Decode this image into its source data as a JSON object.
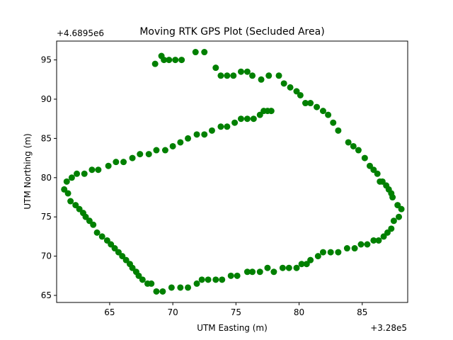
{
  "chart_data": {
    "type": "scatter",
    "title": "Moving RTK GPS Plot (Secluded Area)",
    "xlabel": "UTM Easting (m)",
    "ylabel": "UTM Northing (m)",
    "x_offset_label": "+3.28e5",
    "y_offset_label": "+4.6895e6",
    "xlim": [
      60.8,
      88.6
    ],
    "ylim": [
      64.1,
      97.4
    ],
    "xticks": [
      65,
      70,
      75,
      80,
      85
    ],
    "yticks": [
      65,
      70,
      75,
      80,
      85,
      90,
      95
    ],
    "grid": false,
    "marker_color": "#008000",
    "points": [
      [
        68.6,
        94.5
      ],
      [
        69.1,
        95.5
      ],
      [
        69.3,
        95.0
      ],
      [
        69.7,
        95.0
      ],
      [
        70.2,
        95.0
      ],
      [
        70.7,
        95.0
      ],
      [
        71.8,
        96.0
      ],
      [
        72.5,
        96.0
      ],
      [
        73.4,
        94.0
      ],
      [
        73.8,
        93.0
      ],
      [
        74.3,
        93.0
      ],
      [
        74.8,
        93.0
      ],
      [
        75.4,
        93.5
      ],
      [
        75.9,
        93.5
      ],
      [
        76.3,
        93.0
      ],
      [
        77.0,
        92.5
      ],
      [
        77.6,
        93.0
      ],
      [
        78.4,
        93.0
      ],
      [
        78.8,
        92.0
      ],
      [
        79.3,
        91.5
      ],
      [
        79.8,
        91.0
      ],
      [
        80.1,
        90.5
      ],
      [
        80.5,
        89.5
      ],
      [
        80.9,
        89.5
      ],
      [
        81.4,
        89.0
      ],
      [
        81.9,
        88.5
      ],
      [
        82.3,
        88.0
      ],
      [
        82.7,
        87.0
      ],
      [
        83.1,
        86.0
      ],
      [
        83.9,
        84.5
      ],
      [
        84.3,
        84.0
      ],
      [
        84.7,
        83.5
      ],
      [
        85.2,
        82.5
      ],
      [
        85.6,
        81.5
      ],
      [
        85.9,
        81.0
      ],
      [
        86.2,
        80.5
      ],
      [
        86.4,
        79.5
      ],
      [
        86.6,
        79.5
      ],
      [
        86.9,
        79.0
      ],
      [
        87.1,
        78.5
      ],
      [
        87.3,
        78.0
      ],
      [
        87.4,
        77.5
      ],
      [
        87.8,
        76.5
      ],
      [
        88.1,
        76.0
      ],
      [
        87.9,
        75.0
      ],
      [
        87.5,
        74.5
      ],
      [
        87.3,
        73.5
      ],
      [
        87.0,
        73.0
      ],
      [
        86.7,
        72.5
      ],
      [
        86.3,
        72.0
      ],
      [
        85.9,
        72.0
      ],
      [
        85.4,
        71.5
      ],
      [
        84.9,
        71.5
      ],
      [
        84.4,
        71.0
      ],
      [
        83.8,
        71.0
      ],
      [
        83.1,
        70.5
      ],
      [
        82.5,
        70.5
      ],
      [
        81.9,
        70.5
      ],
      [
        81.5,
        70.0
      ],
      [
        80.9,
        69.5
      ],
      [
        80.6,
        69.0
      ],
      [
        80.2,
        69.0
      ],
      [
        79.8,
        68.5
      ],
      [
        79.2,
        68.5
      ],
      [
        78.7,
        68.5
      ],
      [
        78.0,
        68.0
      ],
      [
        77.5,
        68.5
      ],
      [
        76.9,
        68.0
      ],
      [
        76.3,
        68.0
      ],
      [
        75.9,
        68.0
      ],
      [
        75.1,
        67.5
      ],
      [
        74.6,
        67.5
      ],
      [
        73.9,
        67.0
      ],
      [
        73.4,
        67.0
      ],
      [
        72.8,
        67.0
      ],
      [
        72.3,
        67.0
      ],
      [
        71.9,
        66.5
      ],
      [
        71.2,
        66.0
      ],
      [
        70.6,
        66.0
      ],
      [
        69.9,
        66.0
      ],
      [
        69.2,
        65.5
      ],
      [
        68.7,
        65.5
      ],
      [
        68.3,
        66.5
      ],
      [
        68.0,
        66.5
      ],
      [
        67.6,
        67.0
      ],
      [
        67.3,
        67.5
      ],
      [
        67.1,
        68.0
      ],
      [
        66.8,
        68.5
      ],
      [
        66.6,
        69.0
      ],
      [
        66.3,
        69.5
      ],
      [
        66.0,
        70.0
      ],
      [
        65.7,
        70.5
      ],
      [
        65.4,
        71.0
      ],
      [
        65.1,
        71.5
      ],
      [
        64.8,
        72.0
      ],
      [
        64.4,
        72.5
      ],
      [
        64.0,
        73.0
      ],
      [
        63.7,
        74.0
      ],
      [
        63.4,
        74.5
      ],
      [
        63.1,
        75.0
      ],
      [
        62.9,
        75.5
      ],
      [
        62.6,
        76.0
      ],
      [
        62.3,
        76.5
      ],
      [
        61.9,
        77.0
      ],
      [
        61.7,
        78.0
      ],
      [
        61.4,
        78.5
      ],
      [
        61.6,
        79.5
      ],
      [
        62.0,
        80.0
      ],
      [
        62.4,
        80.5
      ],
      [
        63.0,
        80.5
      ],
      [
        63.6,
        81.0
      ],
      [
        64.1,
        81.0
      ],
      [
        64.9,
        81.5
      ],
      [
        65.5,
        82.0
      ],
      [
        66.1,
        82.0
      ],
      [
        66.8,
        82.5
      ],
      [
        67.4,
        83.0
      ],
      [
        68.1,
        83.0
      ],
      [
        68.7,
        83.5
      ],
      [
        69.4,
        83.5
      ],
      [
        70.0,
        84.0
      ],
      [
        70.6,
        84.5
      ],
      [
        71.2,
        85.0
      ],
      [
        71.9,
        85.5
      ],
      [
        72.5,
        85.5
      ],
      [
        73.1,
        86.0
      ],
      [
        73.8,
        86.5
      ],
      [
        74.3,
        86.5
      ],
      [
        74.9,
        87.0
      ],
      [
        75.4,
        87.5
      ],
      [
        75.9,
        87.5
      ],
      [
        76.4,
        87.5
      ],
      [
        76.9,
        88.0
      ],
      [
        77.2,
        88.5
      ],
      [
        77.5,
        88.5
      ],
      [
        77.8,
        88.5
      ]
    ]
  }
}
